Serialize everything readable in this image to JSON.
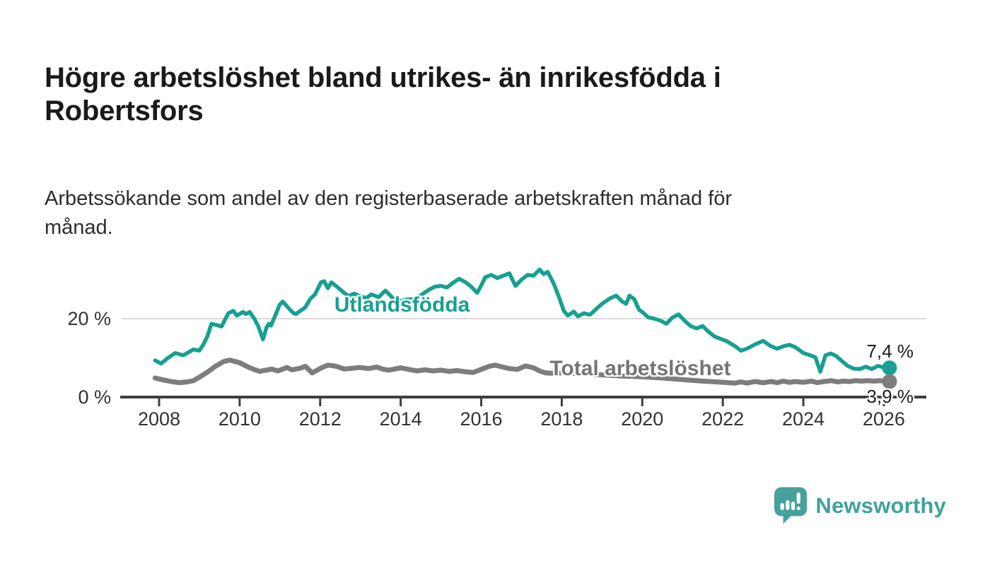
{
  "header": {
    "title_line1": "Högre arbetslöshet bland utrikes- än inrikesfödda i",
    "title_line2": "Robertsfors",
    "subtitle_line1": "Arbetssökande som andel av den registerbaserade arbetskraften månad för",
    "subtitle_line2": "månad."
  },
  "branding": {
    "name": "Newsworthy",
    "logo_color": "#46a19c",
    "text_color": "#3fa29d"
  },
  "chart_data": {
    "type": "line",
    "unit": "%",
    "x_domain": [
      2007.9,
      2026.4
    ],
    "y_domain": [
      0,
      34
    ],
    "grid": "horizontal gridline at 20 only, baseline axis at 0",
    "x_ticks": [
      {
        "value": 2008,
        "label": "2008"
      },
      {
        "value": 2010,
        "label": "2010"
      },
      {
        "value": 2012,
        "label": "2012"
      },
      {
        "value": 2014,
        "label": "2014"
      },
      {
        "value": 2016,
        "label": "2016"
      },
      {
        "value": 2018,
        "label": "2018"
      },
      {
        "value": 2020,
        "label": "2020"
      },
      {
        "value": 2022,
        "label": "2022"
      },
      {
        "value": 2024,
        "label": "2024"
      },
      {
        "value": 2026,
        "label": "2026"
      }
    ],
    "y_ticks": [
      {
        "value": 0,
        "label": "0 %"
      },
      {
        "value": 20,
        "label": "20 %"
      }
    ],
    "colors": {
      "axis": "#3f3f3f",
      "grid": "#cfcfcf",
      "tick_text": "#333333"
    },
    "series": [
      {
        "name": "Utlandsfödda",
        "color": "#17a091",
        "line_width": 5.5,
        "end_label": "7,4 %",
        "end_value": 7.4,
        "label_anchor": {
          "x": 2012.35,
          "y": 23.2
        },
        "points": [
          [
            2007.9,
            9.3
          ],
          [
            2008.05,
            8.5
          ],
          [
            2008.2,
            9.8
          ],
          [
            2008.4,
            11.2
          ],
          [
            2008.6,
            10.6
          ],
          [
            2008.85,
            12.1
          ],
          [
            2009.0,
            11.8
          ],
          [
            2009.1,
            13.4
          ],
          [
            2009.2,
            15.5
          ],
          [
            2009.3,
            18.7
          ],
          [
            2009.45,
            18.3
          ],
          [
            2009.55,
            18.0
          ],
          [
            2009.72,
            21.4
          ],
          [
            2009.84,
            22.0
          ],
          [
            2009.93,
            20.8
          ],
          [
            2010.08,
            21.7
          ],
          [
            2010.16,
            21.2
          ],
          [
            2010.25,
            21.7
          ],
          [
            2010.37,
            19.9
          ],
          [
            2010.46,
            18.1
          ],
          [
            2010.58,
            14.7
          ],
          [
            2010.67,
            17.8
          ],
          [
            2010.73,
            18.7
          ],
          [
            2010.78,
            18.2
          ],
          [
            2010.99,
            23.5
          ],
          [
            2011.07,
            24.4
          ],
          [
            2011.25,
            22.3
          ],
          [
            2011.34,
            21.4
          ],
          [
            2011.4,
            21.2
          ],
          [
            2011.63,
            22.9
          ],
          [
            2011.75,
            25.0
          ],
          [
            2011.87,
            26.2
          ],
          [
            2012.02,
            29.3
          ],
          [
            2012.1,
            29.6
          ],
          [
            2012.19,
            27.8
          ],
          [
            2012.28,
            29.3
          ],
          [
            2012.39,
            28.4
          ],
          [
            2012.55,
            27.0
          ],
          [
            2012.7,
            25.8
          ],
          [
            2012.85,
            26.4
          ],
          [
            2013.0,
            25.7
          ],
          [
            2013.15,
            25.3
          ],
          [
            2013.27,
            26.2
          ],
          [
            2013.45,
            25.5
          ],
          [
            2013.62,
            27.2
          ],
          [
            2013.8,
            25.3
          ],
          [
            2014.0,
            24.5
          ],
          [
            2014.15,
            24.9
          ],
          [
            2014.35,
            25.0
          ],
          [
            2014.53,
            26.2
          ],
          [
            2014.7,
            27.4
          ],
          [
            2014.85,
            28.2
          ],
          [
            2015.0,
            28.4
          ],
          [
            2015.15,
            28.0
          ],
          [
            2015.3,
            29.2
          ],
          [
            2015.45,
            30.2
          ],
          [
            2015.6,
            29.4
          ],
          [
            2015.75,
            28.2
          ],
          [
            2015.9,
            26.6
          ],
          [
            2016.0,
            28.5
          ],
          [
            2016.1,
            30.6
          ],
          [
            2016.25,
            31.2
          ],
          [
            2016.4,
            30.4
          ],
          [
            2016.55,
            31.0
          ],
          [
            2016.7,
            31.6
          ],
          [
            2016.85,
            28.4
          ],
          [
            2017.0,
            30.0
          ],
          [
            2017.15,
            31.2
          ],
          [
            2017.3,
            31.0
          ],
          [
            2017.45,
            32.6
          ],
          [
            2017.55,
            31.4
          ],
          [
            2017.65,
            32.0
          ],
          [
            2017.8,
            29.0
          ],
          [
            2017.95,
            25.0
          ],
          [
            2018.05,
            22.0
          ],
          [
            2018.15,
            20.8
          ],
          [
            2018.3,
            21.8
          ],
          [
            2018.4,
            20.6
          ],
          [
            2018.55,
            21.4
          ],
          [
            2018.7,
            21.0
          ],
          [
            2018.85,
            22.4
          ],
          [
            2019.0,
            23.8
          ],
          [
            2019.2,
            25.2
          ],
          [
            2019.35,
            25.9
          ],
          [
            2019.5,
            24.4
          ],
          [
            2019.6,
            23.8
          ],
          [
            2019.68,
            25.9
          ],
          [
            2019.8,
            25.0
          ],
          [
            2019.92,
            22.3
          ],
          [
            2020.0,
            21.7
          ],
          [
            2020.15,
            20.3
          ],
          [
            2020.3,
            20.0
          ],
          [
            2020.45,
            19.5
          ],
          [
            2020.6,
            18.7
          ],
          [
            2020.75,
            20.3
          ],
          [
            2020.9,
            21.1
          ],
          [
            2021.05,
            19.5
          ],
          [
            2021.2,
            18.1
          ],
          [
            2021.35,
            17.5
          ],
          [
            2021.5,
            18.1
          ],
          [
            2021.65,
            16.6
          ],
          [
            2021.8,
            15.4
          ],
          [
            2021.95,
            14.8
          ],
          [
            2022.1,
            14.2
          ],
          [
            2022.3,
            13.0
          ],
          [
            2022.45,
            11.8
          ],
          [
            2022.6,
            12.3
          ],
          [
            2022.8,
            13.4
          ],
          [
            2023.0,
            14.3
          ],
          [
            2023.2,
            12.9
          ],
          [
            2023.35,
            12.3
          ],
          [
            2023.5,
            12.9
          ],
          [
            2023.65,
            13.3
          ],
          [
            2023.8,
            12.7
          ],
          [
            2024.0,
            11.2
          ],
          [
            2024.15,
            10.7
          ],
          [
            2024.3,
            10.1
          ],
          [
            2024.42,
            6.4
          ],
          [
            2024.55,
            10.6
          ],
          [
            2024.68,
            11.1
          ],
          [
            2024.82,
            10.4
          ],
          [
            2024.95,
            9.2
          ],
          [
            2025.1,
            7.9
          ],
          [
            2025.25,
            7.2
          ],
          [
            2025.4,
            7.1
          ],
          [
            2025.55,
            7.7
          ],
          [
            2025.7,
            7.1
          ],
          [
            2025.85,
            7.9
          ],
          [
            2026.0,
            7.5
          ],
          [
            2026.14,
            7.4
          ]
        ]
      },
      {
        "name": "Total arbetslöshet",
        "color": "#7d7d7d",
        "label_color": "#757575",
        "line_width": 7,
        "end_label": "3,9 %",
        "end_value": 3.9,
        "label_anchor": {
          "x": 2017.7,
          "y": 6.9
        },
        "points": [
          [
            2007.9,
            4.8
          ],
          [
            2008.1,
            4.3
          ],
          [
            2008.3,
            3.9
          ],
          [
            2008.5,
            3.6
          ],
          [
            2008.7,
            3.8
          ],
          [
            2008.85,
            4.1
          ],
          [
            2009.0,
            5.0
          ],
          [
            2009.2,
            6.3
          ],
          [
            2009.4,
            7.8
          ],
          [
            2009.6,
            9.0
          ],
          [
            2009.75,
            9.4
          ],
          [
            2009.9,
            9.0
          ],
          [
            2010.0,
            8.7
          ],
          [
            2010.17,
            7.8
          ],
          [
            2010.35,
            7.0
          ],
          [
            2010.5,
            6.5
          ],
          [
            2010.65,
            6.8
          ],
          [
            2010.8,
            7.1
          ],
          [
            2010.95,
            6.6
          ],
          [
            2011.17,
            7.5
          ],
          [
            2011.3,
            6.9
          ],
          [
            2011.5,
            7.3
          ],
          [
            2011.63,
            7.8
          ],
          [
            2011.8,
            6.1
          ],
          [
            2012.05,
            7.5
          ],
          [
            2012.2,
            8.1
          ],
          [
            2012.4,
            7.8
          ],
          [
            2012.6,
            7.1
          ],
          [
            2012.8,
            7.3
          ],
          [
            2013.0,
            7.5
          ],
          [
            2013.2,
            7.2
          ],
          [
            2013.4,
            7.6
          ],
          [
            2013.55,
            7.1
          ],
          [
            2013.7,
            6.8
          ],
          [
            2013.85,
            7.1
          ],
          [
            2014.0,
            7.4
          ],
          [
            2014.2,
            7.0
          ],
          [
            2014.4,
            6.6
          ],
          [
            2014.6,
            6.9
          ],
          [
            2014.8,
            6.6
          ],
          [
            2015.0,
            6.8
          ],
          [
            2015.2,
            6.5
          ],
          [
            2015.4,
            6.7
          ],
          [
            2015.6,
            6.4
          ],
          [
            2015.8,
            6.2
          ],
          [
            2016.0,
            7.0
          ],
          [
            2016.2,
            7.8
          ],
          [
            2016.35,
            8.1
          ],
          [
            2016.5,
            7.7
          ],
          [
            2016.7,
            7.2
          ],
          [
            2016.9,
            7.0
          ],
          [
            2017.1,
            7.9
          ],
          [
            2017.3,
            7.4
          ],
          [
            2017.45,
            6.6
          ],
          [
            2017.6,
            6.1
          ],
          [
            2017.8,
            6.0
          ],
          [
            2018.0,
            6.1
          ],
          [
            2018.5,
            5.9
          ],
          [
            2019.0,
            5.6
          ],
          [
            2019.5,
            5.3
          ],
          [
            2020.0,
            5.1
          ],
          [
            2020.5,
            4.8
          ],
          [
            2021.0,
            4.4
          ],
          [
            2021.5,
            4.0
          ],
          [
            2022.0,
            3.7
          ],
          [
            2022.3,
            3.5
          ],
          [
            2022.45,
            3.8
          ],
          [
            2022.6,
            3.5
          ],
          [
            2022.8,
            3.9
          ],
          [
            2023.0,
            3.6
          ],
          [
            2023.2,
            3.9
          ],
          [
            2023.35,
            3.6
          ],
          [
            2023.5,
            4.0
          ],
          [
            2023.65,
            3.7
          ],
          [
            2023.8,
            3.9
          ],
          [
            2024.0,
            3.7
          ],
          [
            2024.2,
            4.0
          ],
          [
            2024.35,
            3.6
          ],
          [
            2024.5,
            3.9
          ],
          [
            2024.7,
            4.1
          ],
          [
            2024.85,
            3.8
          ],
          [
            2025.0,
            4.0
          ],
          [
            2025.15,
            3.9
          ],
          [
            2025.3,
            4.1
          ],
          [
            2025.45,
            4.0
          ],
          [
            2025.6,
            4.1
          ],
          [
            2025.75,
            4.0
          ],
          [
            2025.9,
            4.1
          ],
          [
            2026.14,
            3.9
          ]
        ]
      }
    ]
  }
}
